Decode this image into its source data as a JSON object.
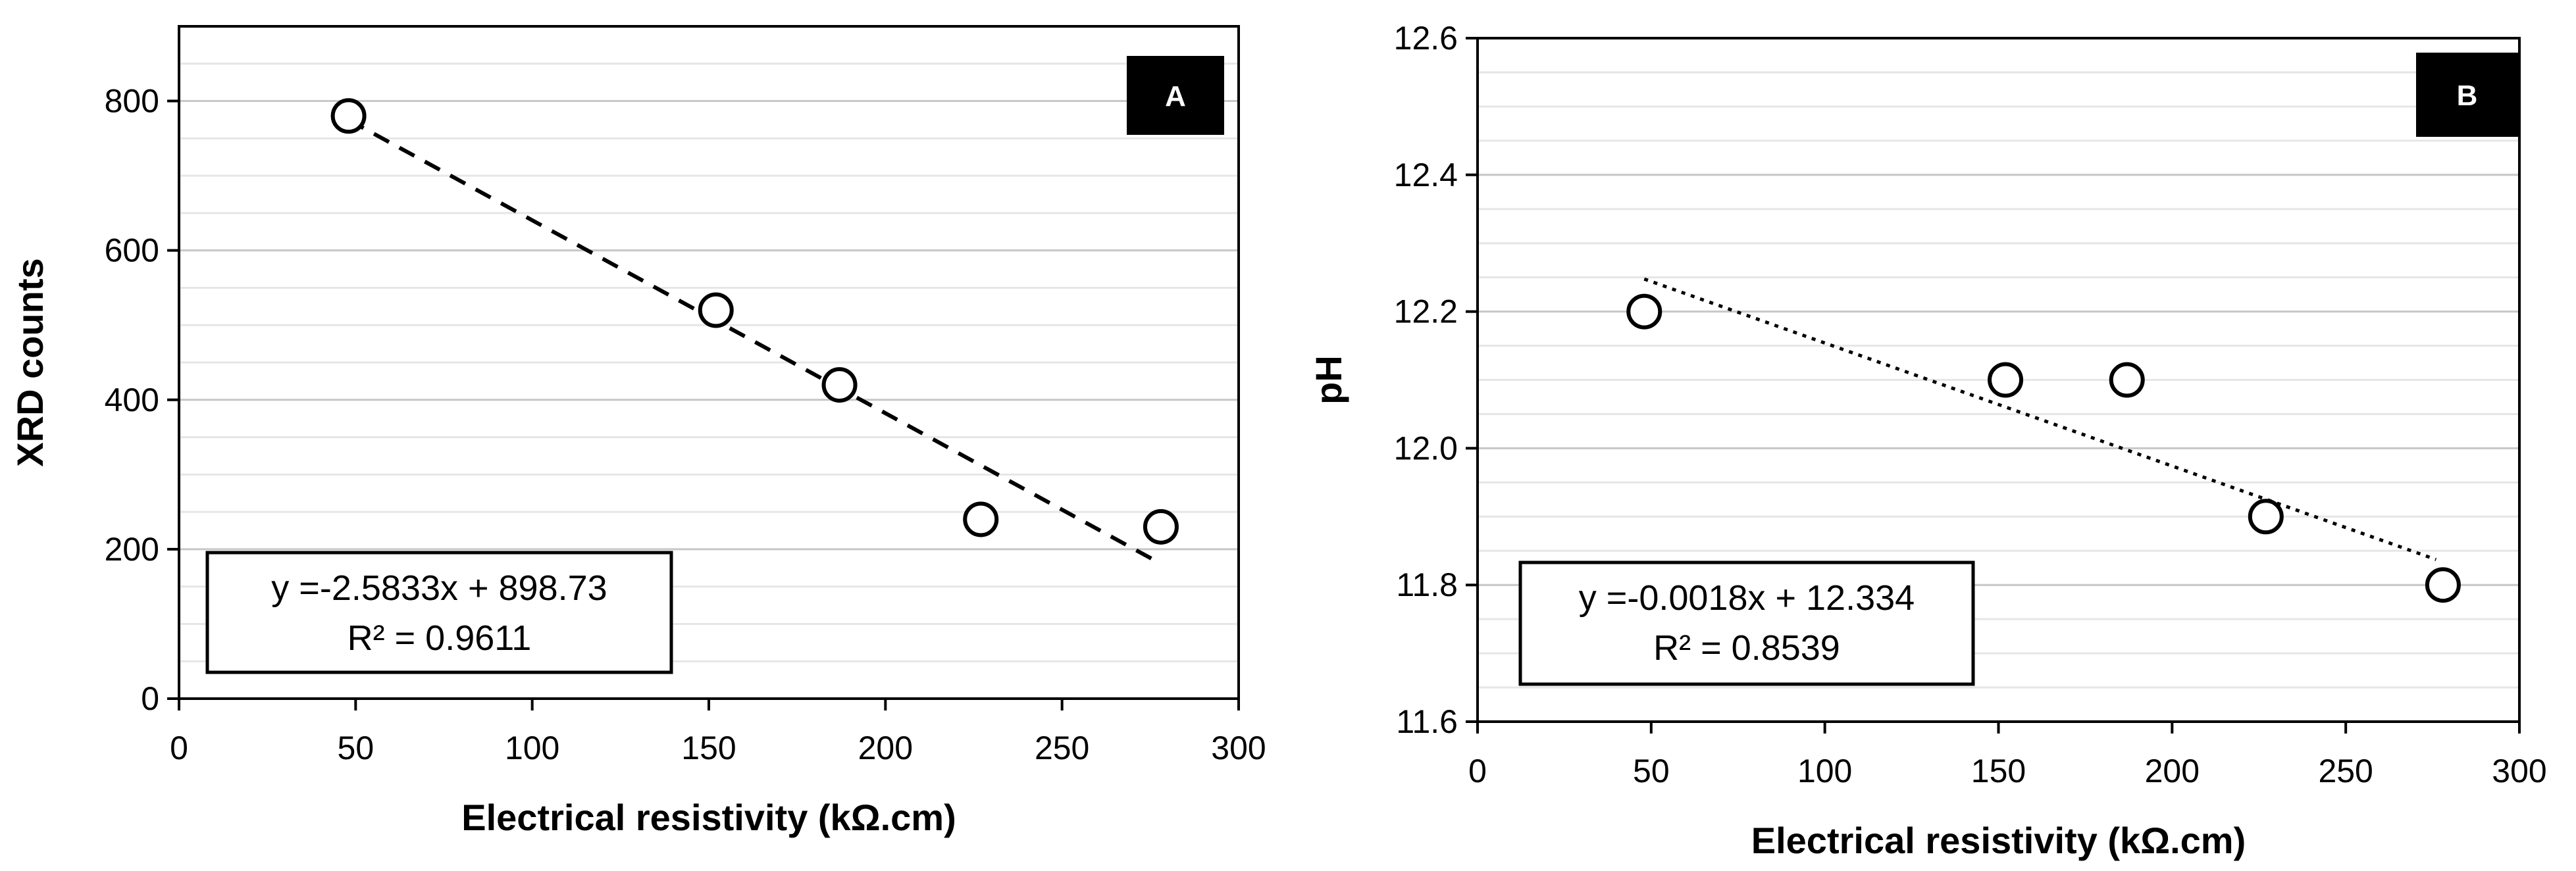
{
  "chart_data": [
    {
      "type": "scatter",
      "panel_label": "A",
      "xlabel": "Electrical resistivity (kΩ.cm)",
      "ylabel": "XRD counts",
      "xlim": [
        0,
        300
      ],
      "ylim": [
        0,
        900
      ],
      "x_ticks": [
        0,
        50,
        100,
        150,
        200,
        250,
        300
      ],
      "y_ticks": [
        0,
        200,
        400,
        600,
        800
      ],
      "x_tick_labels": [
        "0",
        "50",
        "100",
        "150",
        "200",
        "250",
        "300"
      ],
      "y_tick_labels": [
        "0",
        "200",
        "400",
        "600",
        "800"
      ],
      "grid": "horizontal",
      "x": [
        48,
        152,
        187,
        227,
        278
      ],
      "y": [
        780,
        520,
        420,
        240,
        230
      ],
      "trendline": {
        "style": "dashed",
        "slope": -2.5833,
        "intercept": 898.73,
        "x_range": [
          48,
          276
        ]
      },
      "equation": "y =-2.5833x + 898.73",
      "r2": "R² = 0.9611"
    },
    {
      "type": "scatter",
      "panel_label": "B",
      "xlabel": "Electrical resistivity (kΩ.cm)",
      "ylabel": "pH",
      "xlim": [
        0,
        300
      ],
      "ylim": [
        11.6,
        12.6
      ],
      "x_ticks": [
        0,
        50,
        100,
        150,
        200,
        250,
        300
      ],
      "y_ticks": [
        11.6,
        11.8,
        12.0,
        12.2,
        12.4,
        12.6
      ],
      "x_tick_labels": [
        "0",
        "50",
        "100",
        "150",
        "200",
        "250",
        "300"
      ],
      "y_tick_labels": [
        "11.6",
        "11.8",
        "12.0",
        "12.2",
        "12.4",
        "12.6"
      ],
      "grid": "horizontal",
      "x": [
        48,
        152,
        187,
        227,
        278
      ],
      "y": [
        12.2,
        12.1,
        12.1,
        11.9,
        11.8
      ],
      "trendline": {
        "style": "dotted",
        "slope": -0.0018,
        "intercept": 12.334,
        "x_range": [
          48,
          276
        ]
      },
      "equation": "y =-0.0018x + 12.334",
      "r2": "R² = 0.8539"
    }
  ]
}
